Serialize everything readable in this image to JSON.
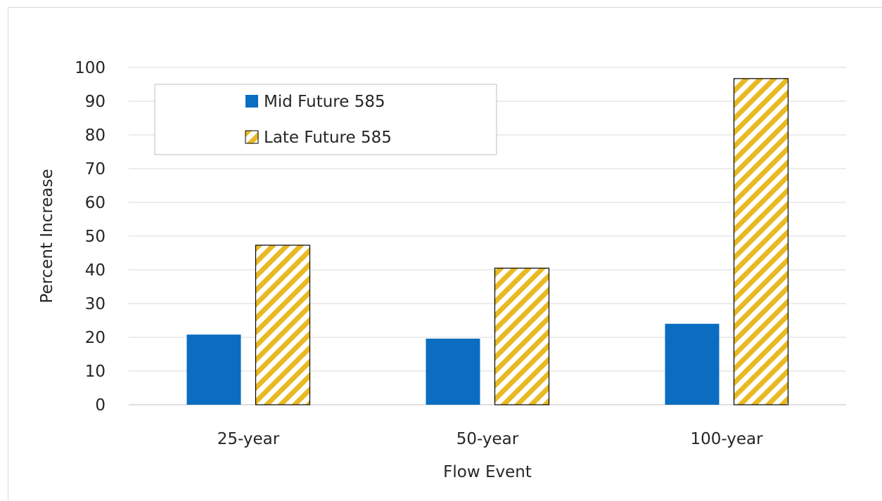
{
  "chart_data": {
    "type": "bar",
    "categories": [
      "25-year",
      "50-year",
      "100-year"
    ],
    "series": [
      {
        "name": "Mid Future 585",
        "values": [
          20.8,
          19.6,
          24.0
        ],
        "color": "#0a6dc2",
        "pattern": "solid"
      },
      {
        "name": "Late Future 585",
        "values": [
          47.3,
          40.5,
          96.7
        ],
        "color": "#e8b923",
        "pattern": "diagonal-hatch"
      }
    ],
    "xlabel": "Flow Event",
    "ylabel": "Percent Increase",
    "ylim": [
      0,
      100
    ],
    "yticks": [
      0,
      10,
      20,
      30,
      40,
      50,
      60,
      70,
      80,
      90,
      100
    ],
    "grid": true,
    "legend_position": "top-left"
  }
}
